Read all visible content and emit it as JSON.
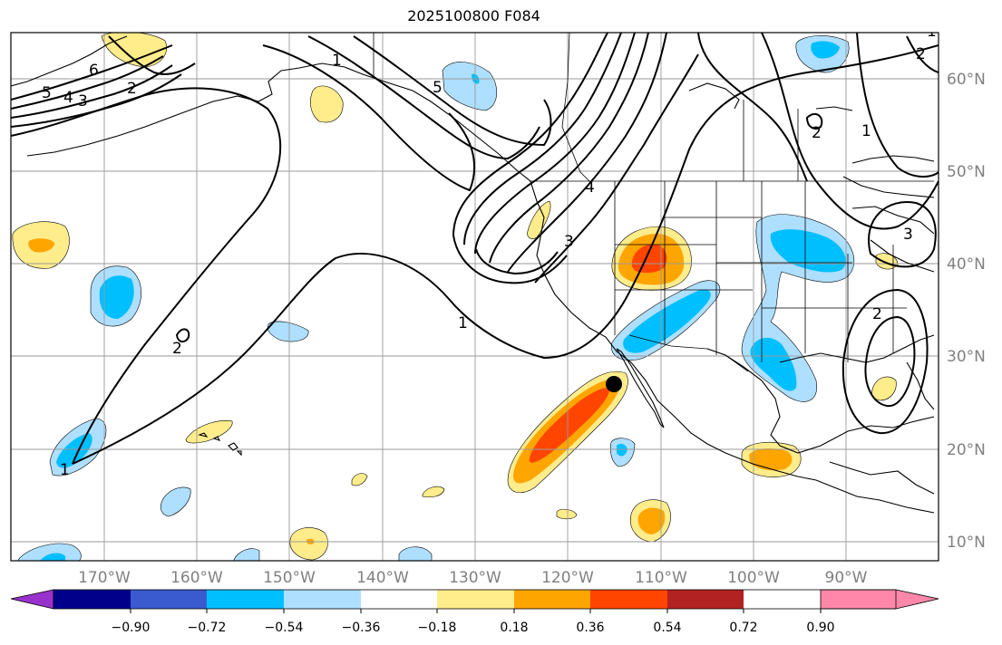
{
  "title": "2025100800 F084",
  "map": {
    "lon_labels": [
      "170°W",
      "160°W",
      "150°W",
      "140°W",
      "130°W",
      "120°W",
      "110°W",
      "100°W",
      "90°W"
    ],
    "lat_labels": [
      "60°N",
      "50°N",
      "40°N",
      "30°N",
      "20°N",
      "10°N"
    ],
    "contour_labels": [
      "6",
      "5",
      "4",
      "3",
      "2",
      "1",
      "2",
      "1",
      "3",
      "4",
      "5",
      "1",
      "2",
      "1",
      "2",
      "3",
      "2",
      "1"
    ],
    "marker": "filled-circle"
  },
  "colorbar": {
    "colors": [
      "#9932cc",
      "#00008b",
      "#3a5bd0",
      "#00bfff",
      "#aedfff",
      "#ffffff",
      "#ffec8b",
      "#ffa500",
      "#ff4500",
      "#b22222",
      "#ff88aa"
    ],
    "tick_labels": [
      "−0.90",
      "−0.72",
      "−0.54",
      "−0.36",
      "−0.18",
      "0.18",
      "0.36",
      "0.54",
      "0.72",
      "0.90"
    ]
  }
}
